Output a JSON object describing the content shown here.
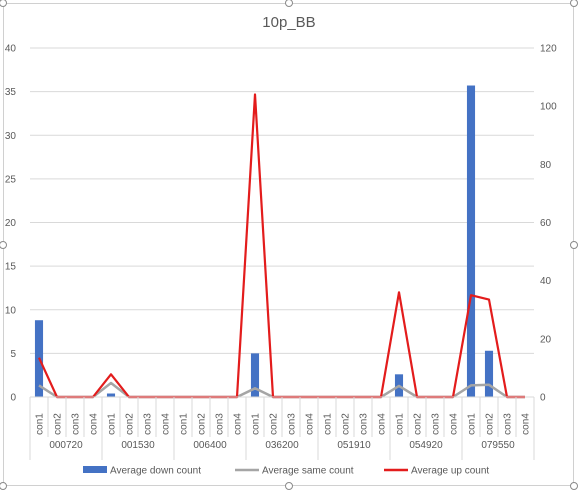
{
  "chart_data": {
    "type": "bar",
    "title": "10p_BB",
    "groups": [
      "000720",
      "001530",
      "006400",
      "036200",
      "051910",
      "054920",
      "079550"
    ],
    "subcategories": [
      "con1",
      "con2",
      "con3",
      "con4"
    ],
    "y_left": {
      "min": 0,
      "max": 40,
      "step": 5
    },
    "y_right": {
      "min": 0,
      "max": 120,
      "step": 20
    },
    "grid": true,
    "legend_position": "bottom",
    "series": [
      {
        "name": "Average down count",
        "type": "bar",
        "axis": "left",
        "color": "#4472c4",
        "values": [
          8.8,
          0,
          0,
          0,
          0.4,
          0,
          0,
          0,
          0,
          0,
          0,
          0,
          5.0,
          0,
          0,
          0,
          0,
          0,
          0,
          0,
          2.6,
          0,
          0,
          0,
          35.7,
          5.3,
          0,
          0
        ]
      },
      {
        "name": "Average same count",
        "type": "line",
        "axis": "right",
        "color": "#a5a5a5",
        "values": [
          4.0,
          0,
          0,
          0,
          4.8,
          0,
          0,
          0,
          0,
          0,
          0,
          0,
          3.0,
          0,
          0,
          0,
          0,
          0,
          0,
          0,
          3.8,
          0,
          0,
          0,
          4.0,
          4.2,
          0,
          0
        ]
      },
      {
        "name": "Average up count",
        "type": "line",
        "axis": "right",
        "color": "#e31c1c",
        "values": [
          13.5,
          0,
          0,
          0,
          7.8,
          0,
          0,
          0,
          0,
          0,
          0,
          0,
          104,
          0,
          0,
          0,
          0,
          0,
          0,
          0,
          36,
          0,
          0,
          0,
          35,
          33.5,
          0,
          0
        ]
      }
    ]
  }
}
